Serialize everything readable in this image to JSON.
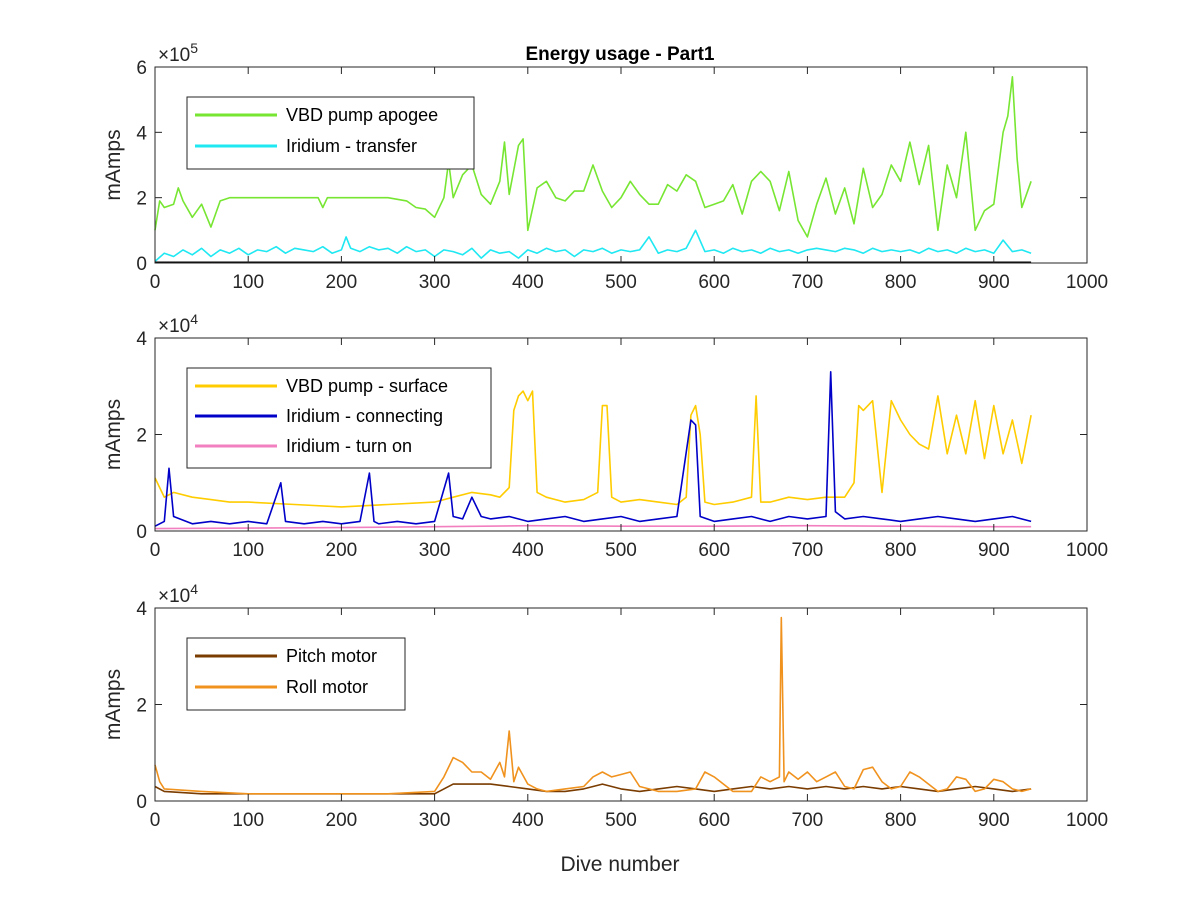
{
  "figure": {
    "title": "Energy usage - Part1",
    "xlabel": "Dive number"
  },
  "chart_data": [
    {
      "type": "line",
      "title": "Energy usage - Part1",
      "ylabel": "mAmps",
      "xlabel": "",
      "xlim": [
        0,
        1000
      ],
      "ylim": [
        0,
        600000
      ],
      "xticks": [
        "0",
        "100",
        "200",
        "300",
        "400",
        "500",
        "600",
        "700",
        "800",
        "900",
        "1000"
      ],
      "yticks": [
        "0",
        "2",
        "4",
        "6"
      ],
      "exponent": {
        "base": "×10",
        "power": "5"
      },
      "legend": "top-left",
      "grid": false,
      "series": [
        {
          "name": "VBD pump apogee",
          "color": "#77e632",
          "x": [
            0,
            5,
            10,
            20,
            25,
            30,
            40,
            50,
            60,
            70,
            80,
            100,
            150,
            175,
            180,
            185,
            200,
            250,
            270,
            280,
            290,
            300,
            310,
            315,
            320,
            330,
            340,
            350,
            360,
            370,
            375,
            380,
            390,
            395,
            400,
            410,
            420,
            430,
            440,
            450,
            460,
            470,
            480,
            490,
            500,
            510,
            520,
            530,
            540,
            550,
            560,
            570,
            580,
            590,
            600,
            610,
            620,
            630,
            640,
            650,
            660,
            670,
            680,
            690,
            700,
            710,
            720,
            730,
            740,
            750,
            760,
            770,
            780,
            790,
            800,
            810,
            820,
            830,
            840,
            850,
            860,
            870,
            880,
            890,
            900,
            910,
            915,
            920,
            925,
            930,
            940
          ],
          "values": [
            100000,
            190000,
            170000,
            180000,
            230000,
            190000,
            140000,
            180000,
            110000,
            190000,
            200000,
            200000,
            200000,
            200000,
            170000,
            200000,
            200000,
            200000,
            190000,
            170000,
            165000,
            140000,
            200000,
            310000,
            200000,
            270000,
            300000,
            210000,
            180000,
            250000,
            370000,
            210000,
            360000,
            380000,
            100000,
            230000,
            250000,
            200000,
            190000,
            220000,
            220000,
            300000,
            220000,
            170000,
            200000,
            250000,
            210000,
            180000,
            180000,
            240000,
            220000,
            270000,
            250000,
            170000,
            180000,
            190000,
            240000,
            150000,
            250000,
            280000,
            250000,
            160000,
            280000,
            130000,
            80000,
            180000,
            260000,
            150000,
            230000,
            120000,
            290000,
            170000,
            210000,
            300000,
            250000,
            370000,
            240000,
            360000,
            100000,
            300000,
            200000,
            400000,
            100000,
            160000,
            180000,
            400000,
            450000,
            570000,
            320000,
            170000,
            250000
          ]
        },
        {
          "name": "Iridium - transfer",
          "color": "#1fe8f2",
          "x": [
            0,
            10,
            20,
            30,
            40,
            50,
            60,
            70,
            80,
            90,
            100,
            110,
            120,
            130,
            140,
            150,
            160,
            170,
            180,
            190,
            200,
            205,
            210,
            220,
            230,
            240,
            250,
            260,
            270,
            280,
            290,
            300,
            310,
            320,
            330,
            340,
            350,
            360,
            370,
            380,
            390,
            400,
            410,
            420,
            430,
            440,
            450,
            460,
            470,
            480,
            490,
            500,
            510,
            520,
            530,
            540,
            550,
            560,
            570,
            580,
            590,
            600,
            610,
            620,
            630,
            640,
            650,
            660,
            670,
            680,
            690,
            700,
            710,
            720,
            730,
            740,
            750,
            760,
            770,
            780,
            790,
            800,
            810,
            820,
            830,
            840,
            850,
            860,
            870,
            880,
            890,
            900,
            910,
            920,
            930,
            940
          ],
          "values": [
            5000,
            30000,
            20000,
            40000,
            25000,
            45000,
            20000,
            40000,
            30000,
            45000,
            25000,
            40000,
            35000,
            50000,
            30000,
            45000,
            40000,
            35000,
            50000,
            30000,
            40000,
            80000,
            45000,
            35000,
            50000,
            40000,
            45000,
            30000,
            50000,
            35000,
            40000,
            20000,
            40000,
            35000,
            25000,
            45000,
            15000,
            40000,
            30000,
            35000,
            15000,
            40000,
            30000,
            45000,
            35000,
            40000,
            20000,
            40000,
            35000,
            45000,
            30000,
            40000,
            35000,
            40000,
            80000,
            30000,
            40000,
            35000,
            45000,
            100000,
            35000,
            40000,
            30000,
            45000,
            35000,
            40000,
            30000,
            45000,
            35000,
            40000,
            30000,
            40000,
            45000,
            40000,
            35000,
            45000,
            40000,
            30000,
            45000,
            35000,
            40000,
            35000,
            40000,
            30000,
            45000,
            35000,
            40000,
            30000,
            45000,
            35000,
            40000,
            30000,
            70000,
            35000,
            40000,
            30000
          ]
        },
        {
          "name": "",
          "color": "#000000",
          "x": [
            0,
            940
          ],
          "values": [
            2000,
            2000
          ]
        }
      ]
    },
    {
      "type": "line",
      "title": "",
      "ylabel": "mAmps",
      "xlabel": "",
      "xlim": [
        0,
        1000
      ],
      "ylim": [
        0,
        40000
      ],
      "xticks": [
        "0",
        "100",
        "200",
        "300",
        "400",
        "500",
        "600",
        "700",
        "800",
        "900",
        "1000"
      ],
      "yticks": [
        "0",
        "2",
        "4"
      ],
      "exponent": {
        "base": "×10",
        "power": "4"
      },
      "legend": "top-left",
      "grid": false,
      "series": [
        {
          "name": "VBD pump - surface",
          "color": "#ffcc00",
          "x": [
            0,
            5,
            10,
            20,
            40,
            60,
            80,
            100,
            150,
            200,
            250,
            300,
            320,
            340,
            360,
            370,
            380,
            385,
            390,
            395,
            400,
            405,
            410,
            420,
            440,
            460,
            475,
            480,
            485,
            490,
            500,
            520,
            540,
            560,
            570,
            575,
            580,
            585,
            590,
            600,
            620,
            640,
            645,
            650,
            660,
            680,
            700,
            720,
            740,
            750,
            755,
            760,
            770,
            780,
            790,
            800,
            810,
            820,
            830,
            840,
            850,
            860,
            870,
            880,
            890,
            900,
            910,
            920,
            930,
            940
          ],
          "values": [
            11000,
            9000,
            7000,
            8000,
            7000,
            6500,
            6000,
            6000,
            5500,
            5000,
            5500,
            6000,
            7000,
            8000,
            7500,
            7000,
            9000,
            25000,
            28000,
            29000,
            27000,
            29000,
            8000,
            7000,
            6000,
            6500,
            8000,
            26000,
            26000,
            7000,
            6000,
            6500,
            6000,
            5500,
            7000,
            24000,
            26000,
            20000,
            6000,
            5500,
            6000,
            7000,
            28000,
            6000,
            6000,
            7000,
            6500,
            7000,
            7000,
            10000,
            26000,
            25000,
            27000,
            8000,
            27000,
            23000,
            20000,
            18000,
            17000,
            28000,
            16000,
            24000,
            16000,
            27000,
            15000,
            26000,
            16000,
            23000,
            14000,
            24000
          ]
        },
        {
          "name": "Iridium - connecting",
          "color": "#0000c8",
          "x": [
            0,
            10,
            15,
            20,
            40,
            60,
            80,
            100,
            120,
            135,
            140,
            160,
            180,
            200,
            220,
            230,
            235,
            240,
            260,
            280,
            300,
            315,
            320,
            330,
            340,
            350,
            360,
            380,
            400,
            420,
            440,
            460,
            480,
            500,
            520,
            540,
            560,
            575,
            580,
            585,
            600,
            620,
            640,
            660,
            680,
            700,
            720,
            725,
            730,
            740,
            760,
            780,
            800,
            820,
            840,
            860,
            880,
            900,
            920,
            940
          ],
          "values": [
            1000,
            2000,
            13000,
            3000,
            1500,
            2000,
            1500,
            2000,
            1500,
            10000,
            2000,
            1500,
            2000,
            1500,
            2000,
            12000,
            2000,
            1500,
            2000,
            1500,
            2000,
            12000,
            3000,
            2500,
            7000,
            3000,
            2500,
            3000,
            2000,
            2500,
            3000,
            2000,
            2500,
            3000,
            2000,
            2500,
            3000,
            23000,
            22000,
            3000,
            2000,
            2500,
            3000,
            2000,
            3000,
            2500,
            3000,
            33000,
            4000,
            2500,
            3000,
            2500,
            2000,
            2500,
            3000,
            2500,
            2000,
            2500,
            3000,
            2000
          ]
        },
        {
          "name": "Iridium - turn on",
          "color": "#f27fbf",
          "x": [
            0,
            100,
            200,
            300,
            400,
            500,
            600,
            700,
            800,
            900,
            940
          ],
          "values": [
            500,
            600,
            700,
            900,
            1100,
            1000,
            1000,
            1100,
            1000,
            900,
            900
          ]
        }
      ]
    },
    {
      "type": "line",
      "title": "",
      "ylabel": "mAmps",
      "xlabel": "Dive number",
      "xlim": [
        0,
        1000
      ],
      "ylim": [
        0,
        40000
      ],
      "xticks": [
        "0",
        "100",
        "200",
        "300",
        "400",
        "500",
        "600",
        "700",
        "800",
        "900",
        "1000"
      ],
      "yticks": [
        "0",
        "2",
        "4"
      ],
      "exponent": {
        "base": "×10",
        "power": "4"
      },
      "legend": "top-left",
      "grid": false,
      "series": [
        {
          "name": "Pitch motor",
          "color": "#7a3c00",
          "x": [
            0,
            10,
            50,
            100,
            150,
            200,
            250,
            300,
            310,
            320,
            340,
            360,
            380,
            400,
            420,
            440,
            460,
            480,
            500,
            520,
            540,
            560,
            580,
            600,
            620,
            640,
            660,
            680,
            700,
            720,
            740,
            760,
            780,
            800,
            820,
            840,
            860,
            880,
            900,
            920,
            940
          ],
          "values": [
            3000,
            2000,
            1500,
            1500,
            1500,
            1500,
            1500,
            1500,
            2500,
            3500,
            3500,
            3500,
            3000,
            2500,
            2000,
            2000,
            2500,
            3500,
            2500,
            2000,
            2500,
            3000,
            2500,
            2000,
            2500,
            3000,
            2500,
            3000,
            2500,
            3000,
            2500,
            3000,
            2500,
            3000,
            2500,
            2000,
            2500,
            3000,
            2500,
            2000,
            2500
          ]
        },
        {
          "name": "Roll motor",
          "color": "#f0921e",
          "x": [
            0,
            5,
            10,
            50,
            100,
            150,
            200,
            250,
            300,
            310,
            320,
            330,
            340,
            350,
            360,
            370,
            375,
            380,
            385,
            390,
            400,
            410,
            420,
            440,
            460,
            470,
            480,
            490,
            500,
            510,
            520,
            530,
            540,
            560,
            580,
            590,
            600,
            620,
            640,
            650,
            660,
            670,
            672,
            675,
            680,
            690,
            700,
            710,
            720,
            730,
            740,
            750,
            760,
            770,
            780,
            790,
            800,
            810,
            820,
            840,
            850,
            860,
            870,
            880,
            890,
            900,
            910,
            920,
            930,
            940
          ],
          "values": [
            7500,
            4000,
            2500,
            2000,
            1500,
            1500,
            1500,
            1500,
            2000,
            5000,
            9000,
            8000,
            6000,
            6000,
            4500,
            8000,
            5000,
            14500,
            4000,
            7000,
            3500,
            2500,
            2000,
            2500,
            3000,
            5000,
            6000,
            5000,
            5500,
            6000,
            3000,
            2500,
            2000,
            2000,
            2500,
            6000,
            5000,
            2000,
            2000,
            5000,
            4000,
            5000,
            38000,
            4000,
            6000,
            4500,
            6000,
            4000,
            5000,
            6000,
            3000,
            2500,
            6500,
            7000,
            4000,
            2500,
            3000,
            6000,
            5000,
            2000,
            2500,
            5000,
            4500,
            2000,
            2500,
            4500,
            4000,
            2500,
            2000,
            2500
          ]
        }
      ]
    }
  ]
}
